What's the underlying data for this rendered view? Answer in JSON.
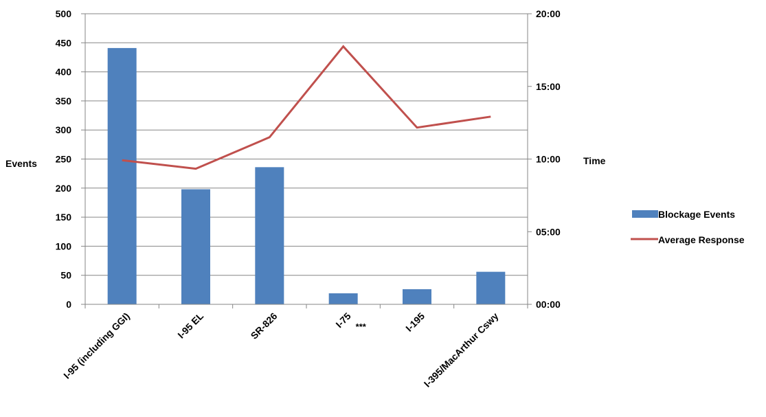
{
  "chart_data": {
    "type": "bar+line",
    "title": "",
    "categories": [
      "I-95 (including GGI)",
      "I-95 EL",
      "SR-826",
      "I-75",
      "I-195",
      "I-395/MacArthur Cswy"
    ],
    "category_annotations": [
      "",
      "",
      "",
      "***",
      "",
      ""
    ],
    "series": [
      {
        "name": "Blockage Events",
        "type": "bar",
        "axis": "left",
        "color": "#4F81BD",
        "values": [
          441,
          198,
          236,
          19,
          26,
          56
        ]
      },
      {
        "name": "Average Response",
        "type": "line",
        "axis": "right",
        "color": "#C0504D",
        "values": [
          "09:55",
          "09:20",
          "11:30",
          "17:45",
          "12:10",
          "12:55"
        ]
      }
    ],
    "ylabel": "Events",
    "ylim": [
      0,
      500
    ],
    "yticks": [
      "0",
      "50",
      "100",
      "150",
      "200",
      "250",
      "300",
      "350",
      "400",
      "450",
      "500"
    ],
    "y2label": "Time",
    "y2lim": [
      "00:00",
      "20:00"
    ],
    "y2ticks": [
      "00:00",
      "05:00",
      "10:00",
      "15:00",
      "20:00"
    ],
    "grid": "horizontal",
    "legend_position": "right"
  }
}
